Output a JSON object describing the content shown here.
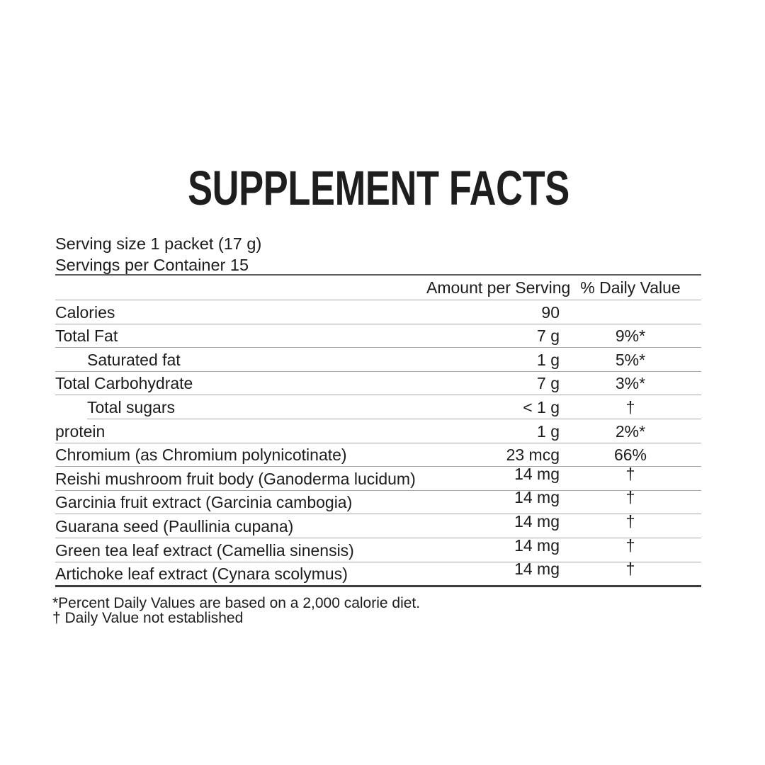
{
  "title": "SUPPLEMENT FACTS",
  "serving": {
    "size_line": "Serving size 1 packet (17 g)",
    "servings_line": "Servings per Container 15"
  },
  "table": {
    "headers": {
      "amount": "Amount per Serving",
      "daily_value": "% Daily Value"
    },
    "rows": [
      {
        "label": "Calories",
        "amount": "90",
        "dv": "",
        "indent": false
      },
      {
        "label": "Total Fat",
        "amount": "7 g",
        "dv": "9%*",
        "indent": false
      },
      {
        "label": "Saturated fat",
        "amount": "1 g",
        "dv": "5%*",
        "indent": true
      },
      {
        "label": "Total Carbohydrate",
        "amount": "7 g",
        "dv": "3%*",
        "indent": false
      },
      {
        "label": "Total sugars",
        "amount": "< 1 g",
        "dv": "†",
        "indent": true
      },
      {
        "label": "protein",
        "amount": "1 g",
        "dv": "2%*",
        "indent": false
      },
      {
        "label": "Chromium (as Chromium polynicotinate)",
        "amount": "23 mcg",
        "dv": "66%",
        "indent": false
      },
      {
        "label": "Reishi mushroom fruit body (Ganoderma lucidum)",
        "amount": "14 mg",
        "dv": "†",
        "indent": false
      },
      {
        "label": "Garcinia fruit extract (Garcinia cambogia)",
        "amount": "14 mg",
        "dv": "†",
        "indent": false
      },
      {
        "label": "Guarana seed (Paullinia cupana)",
        "amount": "14 mg",
        "dv": "†",
        "indent": false
      },
      {
        "label": "Green tea leaf extract (Camellia sinensis)",
        "amount": "14 mg",
        "dv": "†",
        "indent": false
      },
      {
        "label": "Artichoke leaf extract (Cynara scolymus)",
        "amount": "14 mg",
        "dv": "†",
        "indent": false
      }
    ]
  },
  "footnotes": [
    "*Percent Daily Values are based on a 2,000 calorie diet.",
    "† Daily Value not established"
  ],
  "colors": {
    "text": "#1c1c1c",
    "rule_thin": "#a8a8a8",
    "rule_heavy": "#5f5f5f",
    "rule_bottom": "#3c3c3c"
  }
}
